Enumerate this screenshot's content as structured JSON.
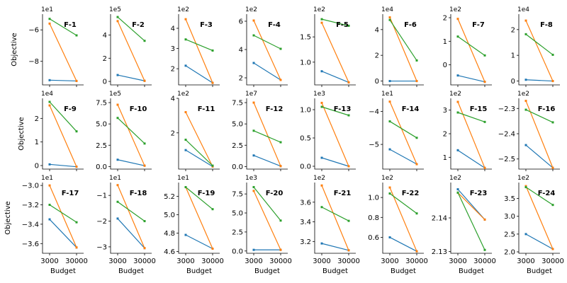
{
  "figure": {
    "xlabel": "Budget",
    "ylabel": "Objective",
    "x_tick_labels": [
      "3000",
      "30000"
    ],
    "x_values": [
      3000,
      30000
    ],
    "colors": {
      "blue": "#1f77b4",
      "orange": "#ff7f0e",
      "green": "#2ca02c"
    }
  },
  "chart_data": [
    {
      "type": "line",
      "title": "F-1",
      "scale": "1e1",
      "yticks": [
        -6,
        -8
      ],
      "ylim": [
        -9.5,
        -5
      ],
      "series": [
        {
          "name": "blue",
          "values": [
            -9.2,
            -9.25
          ]
        },
        {
          "name": "orange",
          "values": [
            -5.6,
            -9.25
          ]
        },
        {
          "name": "green",
          "values": [
            -5.3,
            -6.35
          ]
        }
      ]
    },
    {
      "type": "line",
      "title": "F-2",
      "scale": "1e5",
      "yticks": [
        0,
        2,
        4
      ],
      "ylim": [
        -0.3,
        5.8
      ],
      "series": [
        {
          "name": "blue",
          "values": [
            0.55,
            0.05
          ]
        },
        {
          "name": "orange",
          "values": [
            5.2,
            0.05
          ]
        },
        {
          "name": "green",
          "values": [
            5.55,
            3.5
          ]
        }
      ]
    },
    {
      "type": "line",
      "title": "F-3",
      "scale": "1e2",
      "yticks": [
        2,
        3,
        4
      ],
      "ylim": [
        1.2,
        4.7
      ],
      "series": [
        {
          "name": "blue",
          "values": [
            2.15,
            1.3
          ]
        },
        {
          "name": "orange",
          "values": [
            4.45,
            1.3
          ]
        },
        {
          "name": "green",
          "values": [
            3.45,
            2.9
          ]
        }
      ]
    },
    {
      "type": "line",
      "title": "F-4",
      "scale": "1e2",
      "yticks": [
        2,
        4,
        6
      ],
      "ylim": [
        1.5,
        6.5
      ],
      "series": [
        {
          "name": "blue",
          "values": [
            3.05,
            1.85
          ]
        },
        {
          "name": "orange",
          "values": [
            6.05,
            1.85
          ]
        },
        {
          "name": "green",
          "values": [
            5.0,
            4.05
          ]
        }
      ]
    },
    {
      "type": "line",
      "title": "F-5",
      "scale": "1e2",
      "yticks": [
        1.0,
        1.5
      ],
      "ylim": [
        0.55,
        1.95
      ],
      "series": [
        {
          "name": "blue",
          "values": [
            0.82,
            0.6
          ]
        },
        {
          "name": "orange",
          "values": [
            1.78,
            0.6
          ]
        },
        {
          "name": "green",
          "values": [
            1.85,
            1.72
          ]
        }
      ]
    },
    {
      "type": "line",
      "title": "F-6",
      "scale": "1e4",
      "yticks": [
        0,
        2,
        4
      ],
      "ylim": [
        -0.3,
        5.2
      ],
      "series": [
        {
          "name": "blue",
          "values": [
            0.0,
            0.0
          ]
        },
        {
          "name": "orange",
          "values": [
            4.95,
            0.0
          ]
        },
        {
          "name": "green",
          "values": [
            4.75,
            1.6
          ]
        }
      ]
    },
    {
      "type": "line",
      "title": "F-7",
      "scale": "1e2",
      "yticks": [
        0,
        1,
        2
      ],
      "ylim": [
        -0.85,
        2.15
      ],
      "series": [
        {
          "name": "blue",
          "values": [
            -0.45,
            -0.72
          ]
        },
        {
          "name": "orange",
          "values": [
            1.95,
            -0.72
          ]
        },
        {
          "name": "green",
          "values": [
            1.2,
            0.4
          ]
        }
      ]
    },
    {
      "type": "line",
      "title": "F-8",
      "scale": "1e4",
      "yticks": [
        0,
        1,
        2
      ],
      "ylim": [
        -0.15,
        2.6
      ],
      "series": [
        {
          "name": "blue",
          "values": [
            0.05,
            0.0
          ]
        },
        {
          "name": "orange",
          "values": [
            2.35,
            0.0
          ]
        },
        {
          "name": "green",
          "values": [
            1.82,
            1.02
          ]
        }
      ]
    },
    {
      "type": "line",
      "title": "F-9",
      "scale": "1e4",
      "yticks": [
        0,
        1,
        2
      ],
      "ylim": [
        -0.15,
        2.85
      ],
      "series": [
        {
          "name": "blue",
          "values": [
            0.05,
            -0.05
          ]
        },
        {
          "name": "orange",
          "values": [
            2.55,
            -0.05
          ]
        },
        {
          "name": "green",
          "values": [
            2.7,
            1.45
          ]
        }
      ]
    },
    {
      "type": "line",
      "title": "F-10",
      "scale": "1e5",
      "yticks": [
        0.0,
        2.5,
        5.0,
        7.5
      ],
      "ylim": [
        -0.3,
        8.0
      ],
      "series": [
        {
          "name": "blue",
          "values": [
            0.8,
            0.1
          ]
        },
        {
          "name": "orange",
          "values": [
            7.25,
            0.1
          ]
        },
        {
          "name": "green",
          "values": [
            5.7,
            2.7
          ]
        }
      ]
    },
    {
      "type": "line",
      "title": "F-11",
      "scale": "1e2",
      "yticks": [
        2,
        4
      ],
      "ylim": [
        -0.1,
        4.0
      ],
      "series": [
        {
          "name": "blue",
          "values": [
            1.0,
            0.05
          ]
        },
        {
          "name": "orange",
          "values": [
            3.2,
            0.05
          ]
        },
        {
          "name": "green",
          "values": [
            1.6,
            0.1
          ]
        }
      ]
    },
    {
      "type": "line",
      "title": "F-12",
      "scale": "1e7",
      "yticks": [
        0.0,
        2.5,
        5.0,
        7.5
      ],
      "ylim": [
        -0.3,
        8.0
      ],
      "series": [
        {
          "name": "blue",
          "values": [
            1.3,
            0.05
          ]
        },
        {
          "name": "orange",
          "values": [
            7.5,
            0.05
          ]
        },
        {
          "name": "green",
          "values": [
            4.2,
            2.85
          ]
        }
      ]
    },
    {
      "type": "line",
      "title": "F-13",
      "scale": "1e3",
      "yticks": [
        0.0,
        0.5,
        1.0
      ],
      "ylim": [
        -0.05,
        1.2
      ],
      "series": [
        {
          "name": "blue",
          "values": [
            0.15,
            0.0
          ]
        },
        {
          "name": "orange",
          "values": [
            1.12,
            0.0
          ]
        },
        {
          "name": "green",
          "values": [
            1.05,
            0.9
          ]
        }
      ]
    },
    {
      "type": "line",
      "title": "F-14",
      "scale": "1e1",
      "yticks": [
        -4,
        -5
      ],
      "ylim": [
        -5.75,
        -3.6
      ],
      "series": [
        {
          "name": "blue",
          "values": [
            -5.15,
            -5.6
          ]
        },
        {
          "name": "orange",
          "values": [
            -3.7,
            -5.6
          ]
        },
        {
          "name": "green",
          "values": [
            -4.3,
            -4.8
          ]
        }
      ]
    },
    {
      "type": "line",
      "title": "F-15",
      "scale": "1e2",
      "yticks": [
        1,
        2,
        3
      ],
      "ylim": [
        0.5,
        3.5
      ],
      "series": [
        {
          "name": "blue",
          "values": [
            1.3,
            0.55
          ]
        },
        {
          "name": "orange",
          "values": [
            3.35,
            0.55
          ]
        },
        {
          "name": "green",
          "values": [
            2.9,
            2.5
          ]
        }
      ]
    },
    {
      "type": "line",
      "title": "F-16",
      "scale": "1e2",
      "yticks": [
        -2.3,
        -2.4,
        -2.5
      ],
      "ylim": [
        -2.54,
        -2.26
      ],
      "series": [
        {
          "name": "blue",
          "values": [
            -2.445,
            -2.535
          ]
        },
        {
          "name": "orange",
          "values": [
            -2.27,
            -2.535
          ]
        },
        {
          "name": "green",
          "values": [
            -2.305,
            -2.355
          ]
        }
      ]
    },
    {
      "type": "line",
      "title": "F-17",
      "scale": "1e1",
      "yticks": [
        -3.0,
        -3.2,
        -3.4,
        -3.6
      ],
      "ylim": [
        -3.7,
        -2.97
      ],
      "series": [
        {
          "name": "blue",
          "values": [
            -3.35,
            -3.64
          ]
        },
        {
          "name": "orange",
          "values": [
            -3.0,
            -3.64
          ]
        },
        {
          "name": "green",
          "values": [
            -3.2,
            -3.38
          ]
        }
      ]
    },
    {
      "type": "line",
      "title": "F-18",
      "scale": "1e1",
      "yticks": [
        -1,
        -2,
        -3
      ],
      "ylim": [
        -3.25,
        -0.5
      ],
      "series": [
        {
          "name": "blue",
          "values": [
            -1.9,
            -3.05
          ]
        },
        {
          "name": "orange",
          "values": [
            -0.6,
            -3.05
          ]
        },
        {
          "name": "green",
          "values": [
            -1.25,
            -2.0
          ]
        }
      ]
    },
    {
      "type": "line",
      "title": "F-19",
      "scale": "1e1",
      "yticks": [
        4.6,
        4.8,
        5.0,
        5.2
      ],
      "ylim": [
        4.58,
        5.35
      ],
      "series": [
        {
          "name": "blue",
          "values": [
            4.78,
            4.63
          ]
        },
        {
          "name": "orange",
          "values": [
            5.3,
            4.63
          ]
        },
        {
          "name": "green",
          "values": [
            5.3,
            5.06
          ]
        }
      ]
    },
    {
      "type": "line",
      "title": "F-20",
      "scale": "1e3",
      "yticks": [
        0.0,
        2.5,
        5.0,
        7.5
      ],
      "ylim": [
        -0.3,
        9.0
      ],
      "series": [
        {
          "name": "blue",
          "values": [
            0.15,
            0.15
          ]
        },
        {
          "name": "orange",
          "values": [
            7.9,
            0.15
          ]
        },
        {
          "name": "green",
          "values": [
            8.4,
            4.0
          ]
        }
      ]
    },
    {
      "type": "line",
      "title": "F-21",
      "scale": "1e2",
      "yticks": [
        3.2,
        3.4,
        3.6
      ],
      "ylim": [
        3.08,
        3.8
      ],
      "series": [
        {
          "name": "blue",
          "values": [
            3.18,
            3.11
          ]
        },
        {
          "name": "orange",
          "values": [
            3.77,
            3.11
          ]
        },
        {
          "name": "green",
          "values": [
            3.55,
            3.41
          ]
        }
      ]
    },
    {
      "type": "line",
      "title": "F-22",
      "scale": "1e2",
      "yticks": [
        0.6,
        0.8,
        1.0
      ],
      "ylim": [
        0.44,
        1.15
      ],
      "series": [
        {
          "name": "blue",
          "values": [
            0.6,
            0.46
          ]
        },
        {
          "name": "orange",
          "values": [
            1.1,
            0.46
          ]
        },
        {
          "name": "green",
          "values": [
            1.04,
            0.84
          ]
        }
      ]
    },
    {
      "type": "line",
      "title": "F-23",
      "scale": "1e2",
      "yticks": [
        2.14,
        2.13
      ],
      "ylim": [
        2.1295,
        2.1505
      ],
      "series": [
        {
          "name": "blue",
          "values": [
            2.1485,
            2.1395
          ]
        },
        {
          "name": "orange",
          "values": [
            2.1475,
            2.1395
          ]
        },
        {
          "name": "green",
          "values": [
            2.1475,
            2.1305
          ]
        }
      ]
    },
    {
      "type": "line",
      "title": "F-24",
      "scale": "1e2",
      "yticks": [
        2.0,
        2.5,
        3.0,
        3.5
      ],
      "ylim": [
        1.96,
        3.95
      ],
      "series": [
        {
          "name": "blue",
          "values": [
            2.5,
            2.08
          ]
        },
        {
          "name": "orange",
          "values": [
            3.85,
            2.08
          ]
        },
        {
          "name": "green",
          "values": [
            3.82,
            3.32
          ]
        }
      ]
    }
  ]
}
